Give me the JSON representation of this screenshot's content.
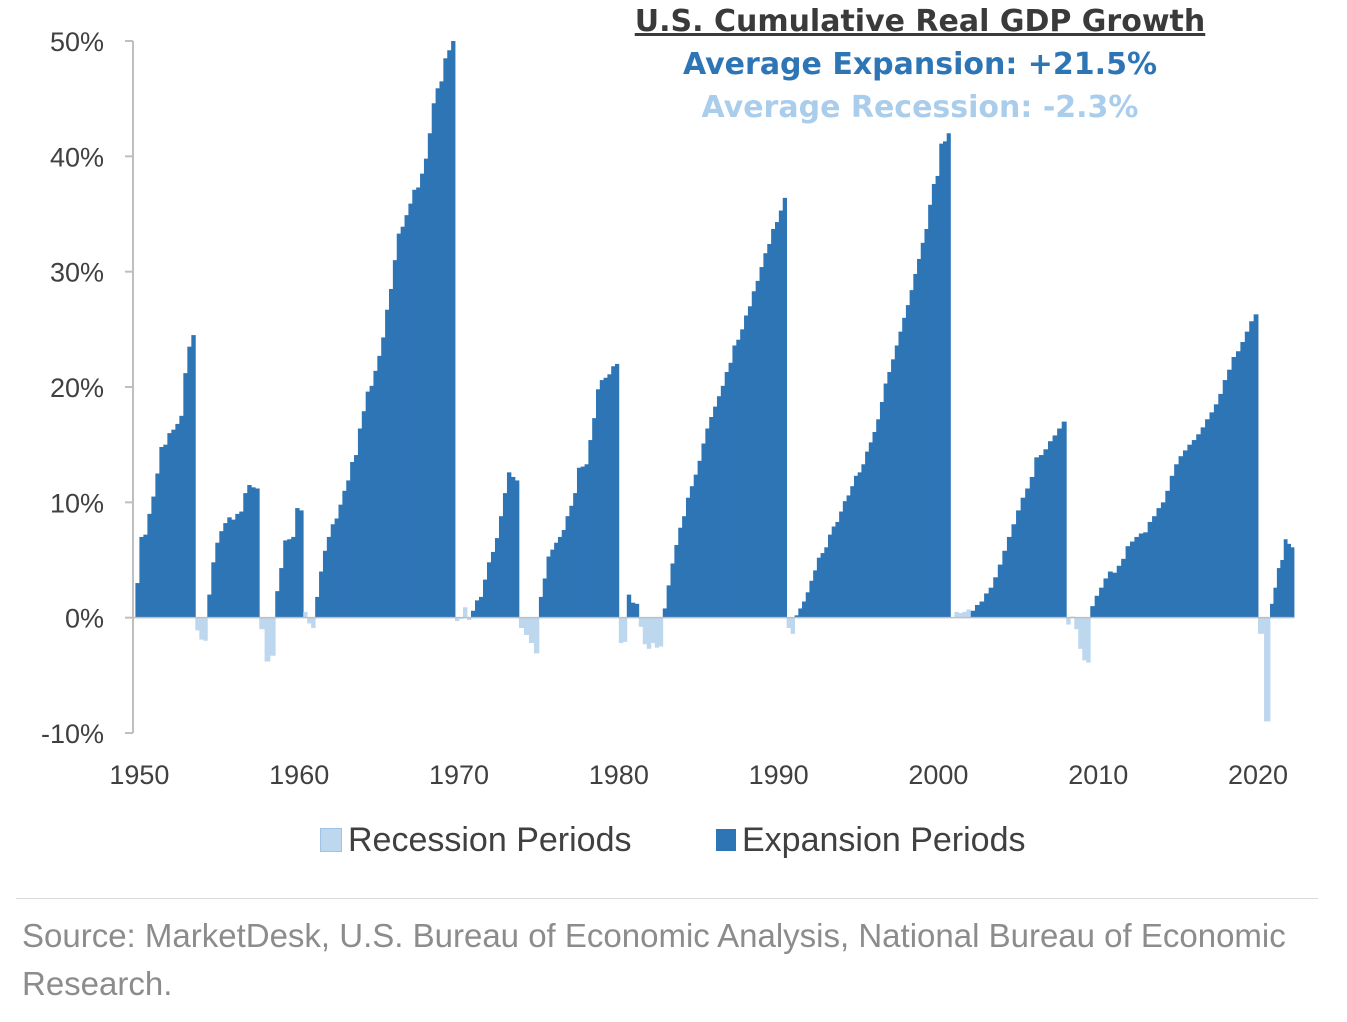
{
  "chart_data": {
    "type": "bar",
    "title": "U.S. Cumulative Real GDP Growth",
    "subtitle_expansion": "Average Expansion: +21.5%",
    "subtitle_recession": "Average Recession: -2.3%",
    "xlabel": "",
    "ylabel": "",
    "xlim": [
      1949.6,
      2022.25
    ],
    "ylim": [
      -10,
      50
    ],
    "yticks": [
      -10,
      0,
      10,
      20,
      30,
      40,
      50
    ],
    "ytick_labels": [
      "-10%",
      "0%",
      "10%",
      "20%",
      "30%",
      "40%",
      "50%"
    ],
    "xticks": [
      1950,
      1960,
      1970,
      1980,
      1990,
      2000,
      2010,
      2020
    ],
    "xtick_labels": [
      "1950",
      "1960",
      "1970",
      "1980",
      "1990",
      "2000",
      "2010",
      "2020"
    ],
    "legend_position": "bottom-center",
    "grid": false,
    "colors": {
      "expansion": "#2e75b6",
      "recession": "#bdd7ee",
      "subtitle_recession": "#a9cdea",
      "axis": "#bfbfbf",
      "title": "#3a3a3a"
    },
    "series": [
      {
        "name": "Expansion Periods",
        "kind": "expansion",
        "periods": [
          {
            "start": 1949.75,
            "end": 1953.5,
            "values": [
              3,
              7,
              7.2,
              9,
              10.5,
              12.5,
              14.8,
              15,
              16,
              16.3,
              16.8,
              17.5,
              21.2,
              23.5,
              24.5
            ]
          },
          {
            "start": 1954.25,
            "end": 1957.5,
            "values": [
              2,
              4.8,
              6.5,
              7.5,
              8.2,
              8.7,
              8.5,
              9,
              9.2,
              10.8,
              11.5,
              11.3,
              11.2
            ]
          },
          {
            "start": 1958.5,
            "end": 1960.25,
            "values": [
              2.3,
              4.3,
              6.7,
              6.8,
              7,
              9.5,
              9.3
            ]
          },
          {
            "start": 1961.0,
            "end": 1969.75,
            "values": [
              1.8,
              4,
              5.8,
              7,
              8.1,
              8.6,
              9.8,
              11,
              11.9,
              13.5,
              14.1,
              16.4,
              17.9,
              19.6,
              20.1,
              21.4,
              22.7,
              24.3,
              26.7,
              28.5,
              31,
              33.3,
              33.9,
              34.9,
              35.9,
              37.1,
              37.3,
              38.5,
              39.8,
              42,
              44.6,
              45.9,
              46.5,
              48.5,
              49.2,
              50
            ]
          },
          {
            "start": 1970.75,
            "end": 1973.75,
            "values": [
              0.6,
              1.5,
              1.8,
              3.3,
              4.8,
              5.7,
              6.9,
              8.8,
              10.8,
              12.6,
              12.2,
              11.9
            ]
          },
          {
            "start": 1975.0,
            "end": 1980.0,
            "values": [
              1.8,
              3.4,
              5.3,
              5.9,
              6.5,
              7,
              7.6,
              8.8,
              9.7,
              10.8,
              13,
              13.1,
              13.3,
              15.4,
              17.3,
              19.8,
              20.6,
              20.8,
              21.1,
              21.8,
              22
            ]
          },
          {
            "start": 1980.5,
            "end": 1981.25,
            "values": [
              2,
              1.3,
              1.2
            ]
          },
          {
            "start": 1982.75,
            "end": 1990.5,
            "values": [
              0.8,
              2.8,
              4.7,
              6.3,
              7.8,
              8.8,
              10.4,
              11.4,
              12.4,
              13.6,
              15.1,
              16.4,
              17.4,
              18.3,
              19.2,
              20.1,
              21.3,
              22.1,
              23.6,
              24.1,
              25,
              26.2,
              27,
              28.3,
              29.2,
              30.4,
              31.6,
              32.4,
              33.7,
              34.3,
              35.3,
              36.4
            ]
          },
          {
            "start": 1991.0,
            "end": 2000.75,
            "values": [
              0.2,
              0.8,
              1.4,
              2.2,
              3.2,
              4.1,
              5.2,
              5.6,
              6.1,
              7.2,
              7.9,
              8.3,
              9.2,
              10.1,
              10.6,
              11.4,
              12.3,
              12.6,
              13.3,
              14.4,
              15.2,
              16.1,
              17.2,
              18.7,
              20.3,
              21.3,
              22.4,
              23.6,
              24.8,
              26,
              27.1,
              28.4,
              29.8,
              31.1,
              32.5,
              33.7,
              35.8,
              37.6,
              38.3,
              41.1,
              41.3,
              42
            ]
          },
          {
            "start": 2002.0,
            "end": 2008.0,
            "values": [
              0.6,
              1.1,
              1.4,
              2.1,
              2.6,
              3.5,
              4.6,
              5.8,
              7,
              8.1,
              9.3,
              10.4,
              11.2,
              12.2,
              13.9,
              14.1,
              14.6,
              15.3,
              15.8,
              16.4,
              17
            ]
          },
          {
            "start": 2009.5,
            "end": 2020.0,
            "values": [
              1,
              1.9,
              2.6,
              3.4,
              4,
              3.9,
              4.5,
              5.1,
              6.2,
              6.6,
              7,
              7.3,
              7.4,
              8.3,
              8.8,
              9.5,
              10,
              11,
              12.3,
              13.3,
              14,
              14.5,
              15,
              15.4,
              15.9,
              16.5,
              17.2,
              17.8,
              18.5,
              19.4,
              20.6,
              21.5,
              22.6,
              23.1,
              23.9,
              24.8,
              25.7,
              26.3
            ]
          },
          {
            "start": 2020.75,
            "end": 2022.25,
            "values": [
              1.2,
              2.6,
              4.3,
              5,
              6.8,
              6.4,
              6.1
            ]
          }
        ]
      },
      {
        "name": "Recession Periods",
        "kind": "recession",
        "periods": [
          {
            "start": 1953.5,
            "end": 1954.25,
            "values": [
              -1.1,
              -1.9,
              -2
            ]
          },
          {
            "start": 1957.5,
            "end": 1958.5,
            "values": [
              -1,
              -3.8,
              -3.3
            ]
          },
          {
            "start": 1960.25,
            "end": 1961.0,
            "values": [
              0.5,
              -0.5,
              -0.9
            ]
          },
          {
            "start": 1969.75,
            "end": 1970.75,
            "values": [
              -0.3,
              -0.1,
              0.9,
              -0.2
            ]
          },
          {
            "start": 1973.75,
            "end": 1975.0,
            "values": [
              -0.9,
              -1.5,
              -2.2,
              -3.1
            ]
          },
          {
            "start": 1980.0,
            "end": 1980.5,
            "values": [
              -2.2,
              -2.1
            ]
          },
          {
            "start": 1981.25,
            "end": 1982.75,
            "values": [
              -0.8,
              -2.3,
              -2.7,
              -2.2,
              -2.6,
              -2.5
            ]
          },
          {
            "start": 1990.5,
            "end": 1991.0,
            "values": [
              -0.9,
              -1.4
            ]
          },
          {
            "start": 2001.0,
            "end": 2002.0,
            "values": [
              0.5,
              0.4,
              0.5,
              0.7
            ]
          },
          {
            "start": 2008.0,
            "end": 2009.5,
            "values": [
              -0.6,
              0.1,
              -1,
              -2.7,
              -3.7,
              -3.9
            ]
          },
          {
            "start": 2020.0,
            "end": 2020.75,
            "values": [
              -1.4,
              -9
            ]
          }
        ]
      }
    ]
  },
  "legend": {
    "recession_label": "Recession Periods",
    "expansion_label": "Expansion Periods"
  },
  "footer": {
    "source": "Source: MarketDesk, U.S. Bureau of Economic Analysis, National Bureau of Economic Research."
  }
}
